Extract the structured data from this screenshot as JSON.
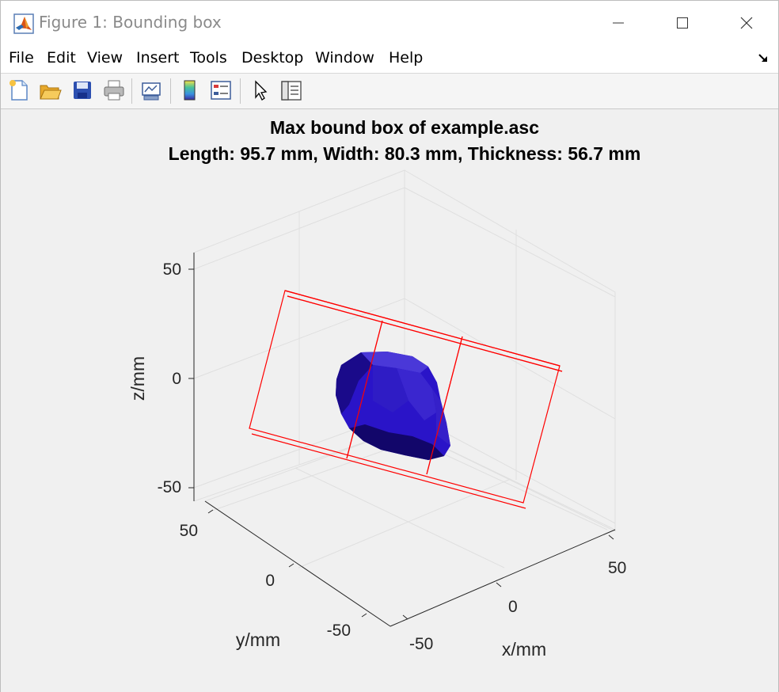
{
  "window": {
    "title": "Figure 1: Bounding box"
  },
  "menu": [
    "File",
    "Edit",
    "View",
    "Insert",
    "Tools",
    "Desktop",
    "Window",
    "Help"
  ],
  "toolbar": [
    {
      "name": "new-figure-button",
      "icon": "new-file-icon"
    },
    {
      "name": "open-file-button",
      "icon": "folder-open-icon"
    },
    {
      "name": "save-figure-button",
      "icon": "floppy-disk-icon"
    },
    {
      "name": "print-figure-button",
      "icon": "printer-icon"
    },
    {
      "name": "link-plot-button",
      "icon": "link-plot-icon"
    },
    {
      "name": "insert-colorbar-button",
      "icon": "colorbar-icon"
    },
    {
      "name": "insert-legend-button",
      "icon": "legend-icon"
    },
    {
      "name": "edit-plot-button",
      "icon": "cursor-arrow-icon"
    },
    {
      "name": "property-inspector-button",
      "icon": "property-inspector-icon"
    }
  ],
  "chart_data": {
    "type": "3d-surface",
    "title_line1": "Max bound box of example.asc",
    "title_line2": "Length: 95.7 mm, Width: 80.3 mm, Thickness: 56.7 mm",
    "xlabel": "x/mm",
    "ylabel": "y/mm",
    "zlabel": "z/mm",
    "x_ticks": [
      "-50",
      "0",
      "50"
    ],
    "y_ticks": [
      "-50",
      "0",
      "50"
    ],
    "z_ticks": [
      "50",
      "0",
      "-50"
    ],
    "grid": true,
    "surface_color": "#2a14c8",
    "bbox_color": "#ff0000",
    "length_mm": 95.7,
    "width_mm": 80.3,
    "thickness_mm": 56.7
  }
}
